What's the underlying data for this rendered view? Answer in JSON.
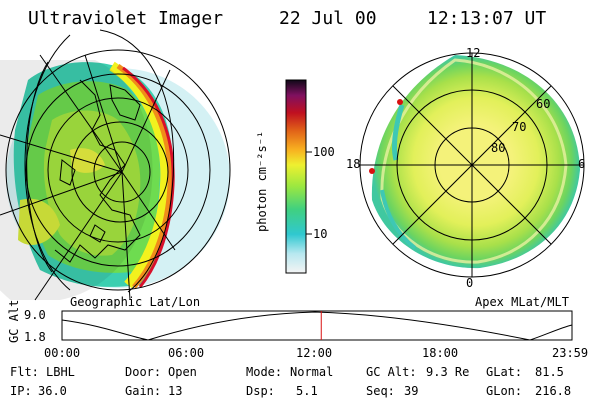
{
  "header": {
    "instrument": "Ultraviolet Imager",
    "date": "22 Jul 00",
    "time": "12:13:07 UT"
  },
  "colorbar": {
    "unit": "photon cm⁻²s⁻¹",
    "ticks": [
      "100",
      "10"
    ]
  },
  "left_panel": {
    "label": "Geographic Lat/Lon"
  },
  "right_panel": {
    "label": "Apex MLat/MLT",
    "mlt_labels": [
      "12",
      "18",
      "6",
      "0"
    ],
    "lat_labels": [
      "60",
      "70",
      "80"
    ]
  },
  "altitude_plot": {
    "ylabel": "GC Alt",
    "yticks": [
      "9.0",
      "1.8"
    ],
    "xticks": [
      "00:00",
      "06:00",
      "12:00",
      "18:00",
      "23:59"
    ],
    "current_marker_hour": 12.2
  },
  "info": {
    "row1": [
      {
        "k": "Flt:",
        "v": "LBHL"
      },
      {
        "k": "Door:",
        "v": "Open"
      },
      {
        "k": "Mode:",
        "v": "Normal"
      },
      {
        "k": "GC Alt:",
        "v": "9.3 Re"
      },
      {
        "k": "GLat:",
        "v": "81.5"
      }
    ],
    "row2": [
      {
        "k": "IP:",
        "v": "36.0"
      },
      {
        "k": "Gain:",
        "v": "13"
      },
      {
        "k": "Dsp:",
        "v": "5.1"
      },
      {
        "k": "Seq:",
        "v": "39"
      },
      {
        "k": "GLon:",
        "v": "216.8"
      }
    ]
  },
  "colors": {
    "aurora_red": "#d8102a",
    "aurora_orange": "#f08c1a",
    "aurora_yellow": "#f2f21e",
    "aurora_green": "#6ee048",
    "aurora_cyan": "#2ec8c8",
    "marker": "#d81010"
  }
}
